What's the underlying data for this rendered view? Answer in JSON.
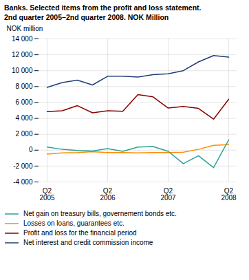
{
  "chart_data": {
    "type": "line",
    "title": "Banks. Selected items from the profit and loss statement.",
    "subtitle": "2nd quarter 2005–2nd quarter 2008. NOK Million",
    "y_label": "NOK million",
    "categories": [
      "Q2\n2005",
      null,
      null,
      null,
      "Q2\n2006",
      null,
      null,
      null,
      "Q2\n2007",
      null,
      null,
      null,
      "Q2\n2008"
    ],
    "series": [
      {
        "name": "Net gain on treasury bills, governement bonds etc.",
        "color": "#2aa198",
        "values": [
          400,
          100,
          -50,
          -100,
          200,
          -150,
          400,
          450,
          -150,
          -1700,
          -700,
          -2200,
          1300
        ]
      },
      {
        "name": "Losses on loans, guarantees etc.",
        "color": "#ff8c00",
        "values": [
          -500,
          -350,
          -300,
          -200,
          -300,
          -300,
          -350,
          -300,
          -300,
          -250,
          100,
          600,
          700
        ]
      },
      {
        "name": "Profit and loss for the financial period",
        "color": "#8b0000",
        "values": [
          4850,
          4950,
          5600,
          4700,
          4950,
          4900,
          7000,
          6700,
          5300,
          5500,
          5250,
          3900,
          6400
        ]
      },
      {
        "name": "Net interest and credit commission income",
        "color": "#1f3d7a",
        "values": [
          7900,
          8500,
          8800,
          8200,
          9300,
          9300,
          9200,
          9500,
          9600,
          10000,
          11100,
          11900,
          11700
        ]
      }
    ],
    "ylim": [
      -4000,
      14000
    ],
    "yticks": [
      {
        "value": -4000,
        "label": "-4 000"
      },
      {
        "value": -2000,
        "label": "-2 000"
      },
      0,
      {
        "value": 2000,
        "label": "2 000"
      },
      {
        "value": 4000,
        "label": "4 000"
      },
      {
        "value": 6000,
        "label": "6 000"
      },
      {
        "value": 8000,
        "label": "8 000"
      },
      {
        "value": 10000,
        "label": "10 000"
      },
      {
        "value": 12000,
        "label": "12 000"
      },
      {
        "value": 14000,
        "label": "14 000"
      }
    ],
    "grid": true,
    "legend": "bottom"
  }
}
